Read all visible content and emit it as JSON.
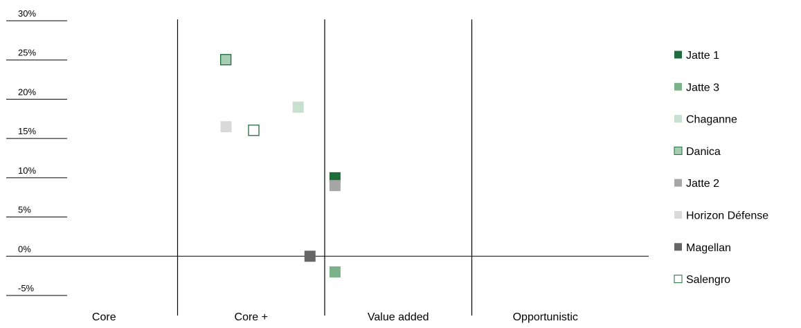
{
  "chart_data": {
    "type": "scatter",
    "title": "",
    "xlabel": "",
    "ylabel": "",
    "ylim": [
      -5,
      30
    ],
    "yticks": [
      30,
      25,
      20,
      15,
      10,
      5,
      0,
      -5
    ],
    "ytick_labels": [
      "30%",
      "25%",
      "20%",
      "15%",
      "10%",
      "5%",
      "0%",
      "-5%"
    ],
    "categories": [
      "Core",
      "Core +",
      "Value added",
      "Opportunistic"
    ],
    "x_range": [
      0,
      4
    ],
    "grid": false,
    "legend_position": "right",
    "series": [
      {
        "name": "Jatte 1",
        "color": "#1e6b3c",
        "outline": false,
        "x": 2.07,
        "y": 10.0
      },
      {
        "name": "Jatte 3",
        "color": "#7bb28a",
        "outline": false,
        "x": 2.07,
        "y": -2.0
      },
      {
        "name": "Chaganne",
        "color": "#c7e0cf",
        "outline": false,
        "x": 1.82,
        "y": 19.0
      },
      {
        "name": "Danica",
        "color": "#a7cdb2",
        "outline": true,
        "x": 1.33,
        "y": 25.0
      },
      {
        "name": "Jatte 2",
        "color": "#a6a6a6",
        "outline": false,
        "x": 2.07,
        "y": 9.0
      },
      {
        "name": "Horizon Défense",
        "color": "#d9d9d9",
        "outline": false,
        "x": 1.33,
        "y": 16.5
      },
      {
        "name": "Magellan",
        "color": "#666666",
        "outline": false,
        "x": 1.9,
        "y": 0.0
      },
      {
        "name": "Salengro",
        "color": "#ffffff",
        "outline": true,
        "outline_color": "#1e6b3c",
        "x": 1.52,
        "y": 16.0
      }
    ]
  }
}
